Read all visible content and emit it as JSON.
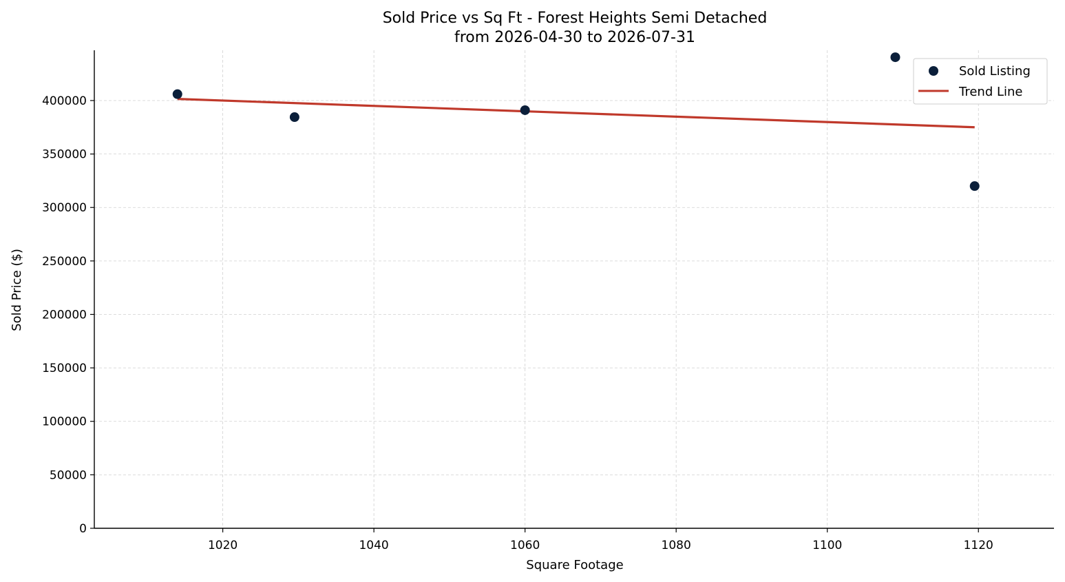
{
  "chart_data": {
    "type": "scatter",
    "title_line1": "Sold Price vs Sq Ft - Forest Heights Semi Detached",
    "title_line2": "from 2026-04-30 to 2026-07-31",
    "xlabel": "Square Footage",
    "ylabel": "Sold Price ($)",
    "xlim": [
      1003,
      1130
    ],
    "ylim": [
      0,
      447000
    ],
    "xticks": [
      1020,
      1040,
      1060,
      1080,
      1100,
      1120
    ],
    "yticks": [
      0,
      50000,
      100000,
      150000,
      200000,
      250000,
      300000,
      350000,
      400000
    ],
    "grid": true,
    "legend_position": "top-right",
    "series": [
      {
        "name": "Sold Listing",
        "kind": "scatter",
        "color": "#0b1f3a",
        "points": [
          {
            "x": 1014,
            "y": 406000
          },
          {
            "x": 1029.5,
            "y": 384500
          },
          {
            "x": 1060,
            "y": 391000
          },
          {
            "x": 1109,
            "y": 440500
          },
          {
            "x": 1119.5,
            "y": 320000
          }
        ]
      },
      {
        "name": "Trend Line",
        "kind": "line",
        "color": "#c0392b",
        "points": [
          {
            "x": 1014,
            "y": 401500
          },
          {
            "x": 1119.5,
            "y": 375000
          }
        ]
      }
    ]
  }
}
